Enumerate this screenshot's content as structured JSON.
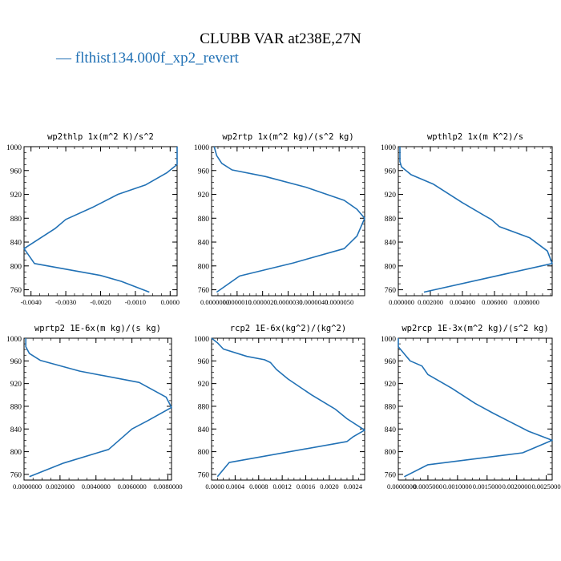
{
  "figure": {
    "title": "CLUBB VAR at238E,27N",
    "legend": "— flthist134.000f_xp2_revert",
    "line_color": "#2171b5"
  },
  "chart_data": [
    {
      "type": "line",
      "title": "wp2thlp  1x(m^2 K)/s^2",
      "xlim": [
        -0.0042,
        0.0002
      ],
      "ylim": [
        1000,
        750
      ],
      "yticks": [
        "760",
        "800",
        "840",
        "880",
        "920",
        "960",
        "1000"
      ],
      "xticks": [
        "-0.0040",
        "-0.0030",
        "-0.0020",
        "-0.0010",
        "0.0000"
      ],
      "series": [
        {
          "x": [
            -0.0006,
            -0.0014,
            -0.002,
            -0.0039,
            -0.0042,
            -0.0033,
            -0.003,
            -0.0022,
            -0.0015,
            -0.0007,
            -0.0001,
            0.0002,
            0.0002
          ],
          "y": [
            756,
            774,
            784,
            804,
            829,
            863,
            878,
            899,
            920,
            936,
            956,
            970,
            1000
          ]
        }
      ]
    },
    {
      "type": "line",
      "title": "wp2rtp  1x(m^2 kg)/(s^2 kg)",
      "xlim": [
        0.0,
        6e-06
      ],
      "ylim": [
        1000,
        750
      ],
      "yticks": [
        "760",
        "800",
        "840",
        "880",
        "920",
        "960",
        "1000"
      ],
      "xticks": [
        "0.0000000",
        "0.0000010",
        "0.0000020",
        "0.0000030",
        "0.0000040",
        "0.0000050"
      ],
      "series": [
        {
          "x": [
            2e-07,
            1.1e-06,
            3.2e-06,
            5.2e-06,
            5.7e-06,
            6e-06,
            5.7e-06,
            5.2e-06,
            3.7e-06,
            2.1e-06,
            8e-07,
            4e-07,
            2e-07,
            1e-07
          ],
          "y": [
            756,
            783,
            805,
            829,
            850,
            880,
            895,
            910,
            932,
            950,
            961,
            972,
            985,
            1000
          ]
        }
      ]
    },
    {
      "type": "line",
      "title": "wpthlp2  1x(m K^2)/s",
      "xlim": [
        0.0,
        0.0096
      ],
      "ylim": [
        1000,
        750
      ],
      "yticks": [
        "760",
        "800",
        "840",
        "880",
        "920",
        "960",
        "1000"
      ],
      "xticks": [
        "0.000000",
        "0.002000",
        "0.004000",
        "0.006000",
        "0.008000"
      ],
      "series": [
        {
          "x": [
            0.0016,
            0.0096,
            0.0093,
            0.0082,
            0.0063,
            0.0058,
            0.0054,
            0.004,
            0.0022,
            0.0008,
            0.0002,
            0.0001,
            0.0001
          ],
          "y": [
            756,
            804,
            825,
            847,
            866,
            878,
            884,
            906,
            937,
            953,
            966,
            975,
            1000
          ]
        }
      ]
    },
    {
      "type": "line",
      "title": "wprtp2  1E-6x(m kg)/(s kg)",
      "xlim": [
        0.0,
        0.0082
      ],
      "ylim": [
        1000,
        750
      ],
      "yticks": [
        "760",
        "800",
        "840",
        "880",
        "920",
        "960",
        "1000"
      ],
      "xticks": [
        "0.0000000",
        "0.0020000",
        "0.0040000",
        "0.0060000",
        "0.0080000"
      ],
      "series": [
        {
          "x": [
            0.0003,
            0.0022,
            0.0047,
            0.0055,
            0.006,
            0.0069,
            0.0082,
            0.0079,
            0.0064,
            0.0031,
            0.0009,
            0.0003,
            0.0001,
            0.0001
          ],
          "y": [
            756,
            780,
            804,
            826,
            840,
            855,
            878,
            896,
            922,
            942,
            961,
            973,
            985,
            1000
          ]
        }
      ]
    },
    {
      "type": "line",
      "title": "rcp2  1E-6x(kg^2)/(kg^2)",
      "xlim": [
        0.0,
        0.0026
      ],
      "ylim": [
        1000,
        750
      ],
      "yticks": [
        "760",
        "800",
        "840",
        "880",
        "920",
        "960",
        "1000"
      ],
      "xticks": [
        "0.0000",
        "0.0004",
        "0.0008",
        "0.0012",
        "0.0016",
        "0.0020",
        "0.0024"
      ],
      "series": [
        {
          "x": [
            0.0001,
            0.0003,
            0.0023,
            0.0024,
            0.0026,
            0.0023,
            0.0021,
            0.0017,
            0.0013,
            0.0011,
            0.001,
            0.0009,
            0.0006,
            0.0002,
            0.0001,
            0.0
          ],
          "y": [
            756,
            781,
            818,
            826,
            838,
            858,
            875,
            900,
            928,
            945,
            957,
            962,
            968,
            981,
            992,
            1000
          ]
        }
      ]
    },
    {
      "type": "line",
      "title": "wp2rcp  1E-3x(m^2 kg)/(s^2 kg)",
      "xlim": [
        0.0,
        0.0026
      ],
      "ylim": [
        1000,
        750
      ],
      "yticks": [
        "760",
        "800",
        "840",
        "880",
        "920",
        "960",
        "1000"
      ],
      "xticks": [
        "0.0000000",
        "0.0005000",
        "0.0010000",
        "0.0015000",
        "0.0020000",
        "0.0025000"
      ],
      "series": [
        {
          "x": [
            0.0001,
            0.0005,
            0.0021,
            0.0026,
            0.0022,
            0.0016,
            0.0013,
            0.0009,
            0.0005,
            0.0004,
            0.0002,
            0.0,
            0.0
          ],
          "y": [
            756,
            777,
            798,
            820,
            836,
            868,
            885,
            912,
            936,
            951,
            960,
            985,
            1000
          ]
        }
      ]
    }
  ]
}
